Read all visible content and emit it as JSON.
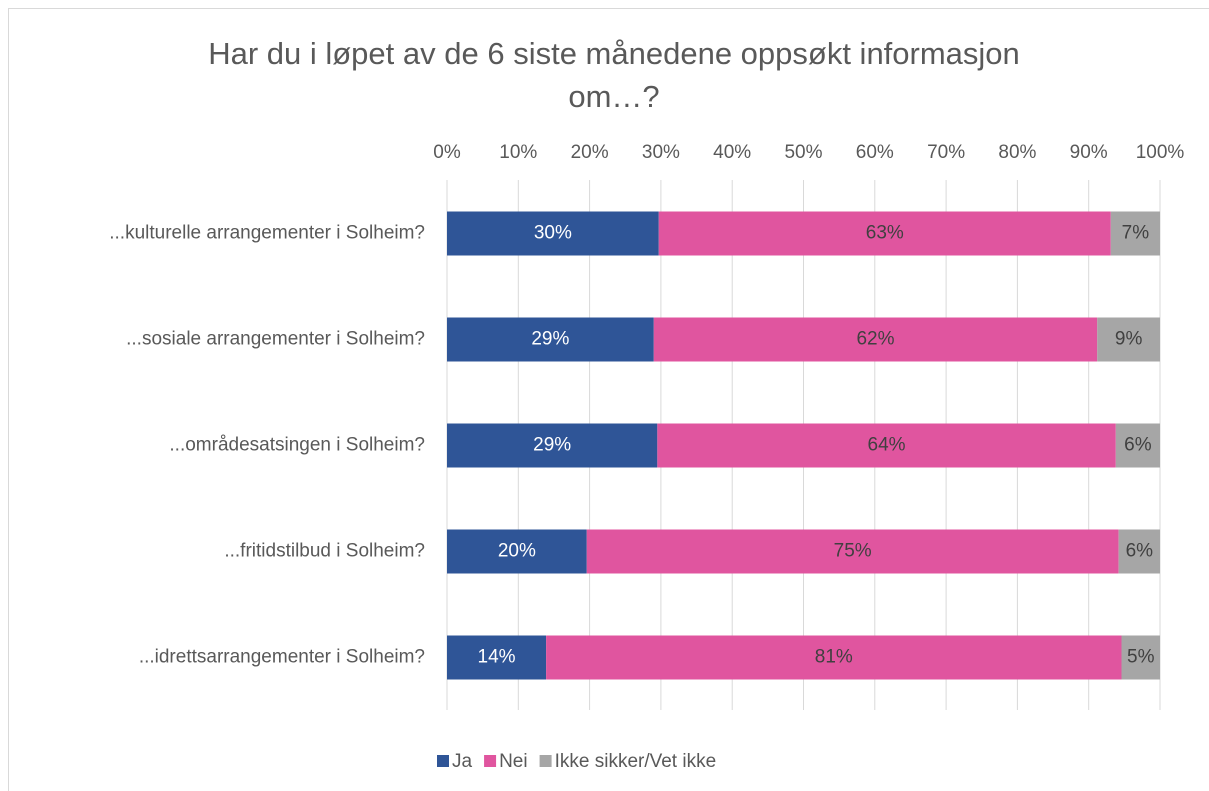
{
  "chart_data": {
    "type": "stacked-bar-horizontal",
    "title": "Har du i løpet av de 6 siste månedene oppsøkt informasjon om…?",
    "categories": [
      "...kulturelle arrangementer i Solheim?",
      "...sosiale arrangementer i Solheim?",
      "...områdesatsingen i Solheim?",
      "...fritidstilbud i Solheim?",
      "...idrettsarrangementer i Solheim?"
    ],
    "series": [
      {
        "name": "Ja",
        "color": "#2f5597",
        "values": [
          29.7,
          29.0,
          29.5,
          19.6,
          13.9
        ],
        "value_labels": [
          "30%",
          "29%",
          "29%",
          "20%",
          "14%"
        ]
      },
      {
        "name": "Nei",
        "color": "#e0559f",
        "values": [
          63.4,
          62.2,
          64.3,
          74.6,
          80.7
        ],
        "value_labels": [
          "63%",
          "62%",
          "64%",
          "75%",
          "81%"
        ]
      },
      {
        "name": "Ikke sikker/Vet ikke",
        "color": "#a6a6a6",
        "values": [
          6.9,
          8.8,
          6.2,
          5.8,
          5.4
        ],
        "value_labels": [
          "7%",
          "9%",
          "6%",
          "6%",
          "5%"
        ]
      }
    ],
    "xlim": [
      0,
      100
    ],
    "xticks": [
      {
        "value": 0,
        "label": "0%"
      },
      {
        "value": 10,
        "label": "10%"
      },
      {
        "value": 20,
        "label": "20%"
      },
      {
        "value": 30,
        "label": "30%"
      },
      {
        "value": 40,
        "label": "40%"
      },
      {
        "value": 50,
        "label": "50%"
      },
      {
        "value": 60,
        "label": "60%"
      },
      {
        "value": 70,
        "label": "70%"
      },
      {
        "value": 80,
        "label": "80%"
      },
      {
        "value": 90,
        "label": "90%"
      },
      {
        "value": 100,
        "label": "100%"
      }
    ],
    "grid": true,
    "legend": "bottom"
  }
}
